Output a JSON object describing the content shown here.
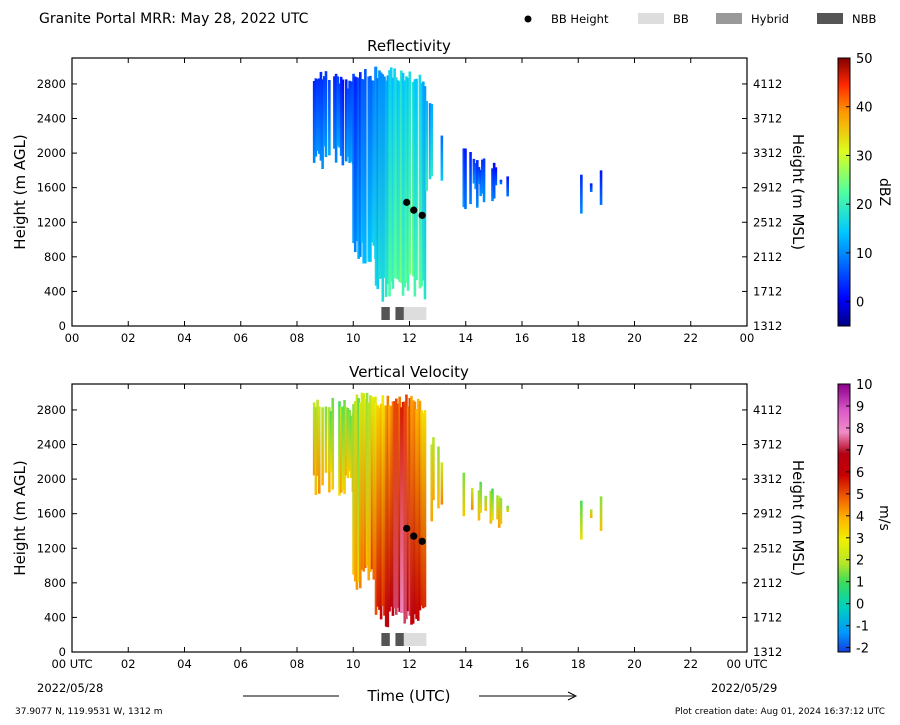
{
  "header": {
    "title": "Granite Portal MRR:  May 28, 2022 UTC",
    "legend": [
      {
        "label": "BB Height",
        "kind": "dot",
        "color": "#000000"
      },
      {
        "label": "BB",
        "kind": "box",
        "color": "#dddddd"
      },
      {
        "label": "Hybrid",
        "kind": "box",
        "color": "#999999"
      },
      {
        "label": "NBB",
        "kind": "box",
        "color": "#555555"
      }
    ]
  },
  "footer": {
    "coords": "37.9077 N, 119.9531 W, 1312 m",
    "created": "Plot creation date: Aug 01, 2024 16:37:12 UTC",
    "xlabel": "Time (UTC)",
    "start_date": "2022/05/28",
    "end_date": "2022/05/29"
  },
  "chart_data": [
    {
      "type": "heatmap",
      "title": "Reflectivity",
      "xlabel": "",
      "ylabel": "Height (m AGL)",
      "ylabel_right": "Height (m MSL)",
      "colorbar_label": "dBZ",
      "colorbar_ticks": [
        "0",
        "10",
        "20",
        "30",
        "40",
        "50"
      ],
      "colorbar_range": [
        -5,
        50
      ],
      "x_ticks": [
        "00",
        "02",
        "04",
        "06",
        "08",
        "10",
        "12",
        "14",
        "16",
        "18",
        "20",
        "22",
        "00"
      ],
      "y_ticks": [
        "0",
        "400",
        "800",
        "1200",
        "1600",
        "2000",
        "2400",
        "2800"
      ],
      "y_ticks_right": [
        "1312",
        "1712",
        "2112",
        "2512",
        "2912",
        "3312",
        "3712",
        "4112"
      ],
      "xlim": [
        0,
        24
      ],
      "ylim": [
        0,
        3100
      ],
      "bb_height": [
        {
          "x": 11.9,
          "y": 1430
        },
        {
          "x": 12.15,
          "y": 1340
        },
        {
          "x": 12.45,
          "y": 1280
        }
      ],
      "bb_flags": [
        {
          "start": 11.0,
          "end": 11.3,
          "kind": "NBB"
        },
        {
          "start": 11.5,
          "end": 11.8,
          "kind": "NBB"
        },
        {
          "start": 11.8,
          "end": 12.6,
          "kind": "BB"
        }
      ]
    },
    {
      "type": "heatmap",
      "title": "Vertical Velocity",
      "xlabel": "Time (UTC)",
      "ylabel": "Height (m AGL)",
      "ylabel_right": "Height (m MSL)",
      "colorbar_label": "m/s",
      "colorbar_ticks": [
        "-2",
        "-1",
        "0",
        "1",
        "2",
        "3",
        "4",
        "5",
        "6",
        "7",
        "8",
        "9",
        "10"
      ],
      "colorbar_range": [
        -2.2,
        10
      ],
      "x_ticks": [
        "00 UTC",
        "02",
        "04",
        "06",
        "08",
        "10",
        "12",
        "14",
        "16",
        "18",
        "20",
        "22",
        "00 UTC"
      ],
      "y_ticks": [
        "0",
        "400",
        "800",
        "1200",
        "1600",
        "2000",
        "2400",
        "2800"
      ],
      "y_ticks_right": [
        "1312",
        "1712",
        "2112",
        "2512",
        "2912",
        "3312",
        "3712",
        "4112"
      ],
      "xlim": [
        0,
        24
      ],
      "ylim": [
        0,
        3100
      ],
      "bb_height": [
        {
          "x": 11.9,
          "y": 1430
        },
        {
          "x": 12.15,
          "y": 1340
        },
        {
          "x": 12.45,
          "y": 1280
        }
      ],
      "bb_flags": [
        {
          "start": 11.0,
          "end": 11.3,
          "kind": "NBB"
        },
        {
          "start": 11.5,
          "end": 11.8,
          "kind": "NBB"
        },
        {
          "start": 11.8,
          "end": 12.6,
          "kind": "BB"
        }
      ]
    }
  ]
}
